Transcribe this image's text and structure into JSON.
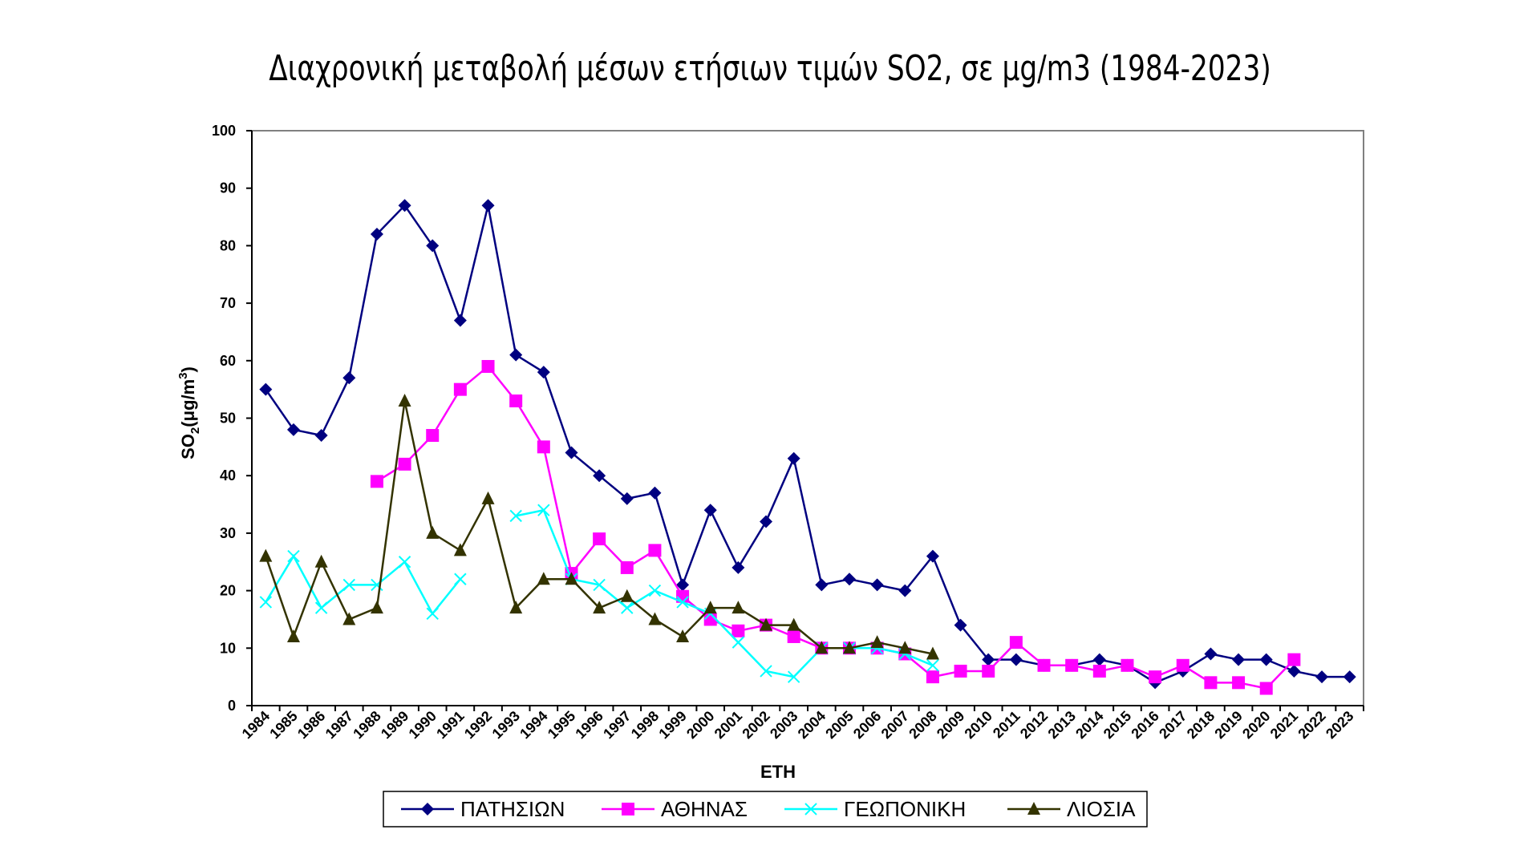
{
  "chart_data": {
    "type": "line",
    "title": "Διαχρονική μεταβολή μέσων ετήσιων τιμών SO2, σε μg/m3 (1984-2023)",
    "xlabel": "ΕΤΗ",
    "ylabel": "SO",
    "ylabel_sub": "2",
    "ylabel_rest": "(μg/m",
    "ylabel_sup": "3",
    "ylabel_end": ")",
    "ylim": [
      0,
      100
    ],
    "yticks": [
      0,
      10,
      20,
      30,
      40,
      50,
      60,
      70,
      80,
      90,
      100
    ],
    "categories": [
      "1984",
      "1985",
      "1986",
      "1987",
      "1988",
      "1989",
      "1990",
      "1991",
      "1992",
      "1993",
      "1994",
      "1995",
      "1996",
      "1997",
      "1998",
      "1999",
      "2000",
      "2001",
      "2002",
      "2003",
      "2004",
      "2005",
      "2006",
      "2007",
      "2008",
      "2009",
      "2010",
      "2011",
      "2012",
      "2013",
      "2014",
      "2015",
      "2016",
      "2017",
      "2018",
      "2019",
      "2020",
      "2021",
      "2022",
      "2023"
    ],
    "legend_position": "bottom",
    "series": [
      {
        "name": "ΠΑΤΗΣΙΩΝ",
        "color": "#000080",
        "marker": "diamond",
        "values": [
          55,
          48,
          47,
          57,
          82,
          87,
          80,
          67,
          87,
          61,
          58,
          44,
          40,
          36,
          37,
          21,
          34,
          24,
          32,
          43,
          21,
          22,
          21,
          20,
          26,
          14,
          8,
          8,
          7,
          7,
          8,
          7,
          4,
          6,
          9,
          8,
          8,
          6,
          5,
          5
        ]
      },
      {
        "name": "ΑΘΗΝΑΣ",
        "color": "#ff00ff",
        "marker": "square",
        "values": [
          null,
          null,
          null,
          null,
          39,
          42,
          47,
          55,
          59,
          53,
          45,
          23,
          29,
          24,
          27,
          19,
          15,
          13,
          14,
          12,
          10,
          10,
          10,
          9,
          5,
          6,
          6,
          11,
          7,
          7,
          6,
          7,
          5,
          7,
          4,
          4,
          3,
          8,
          null,
          null
        ]
      },
      {
        "name": "ΓΕΩΠΟΝΙΚΗ",
        "color": "#00ffff",
        "marker": "x",
        "values": [
          18,
          26,
          17,
          21,
          21,
          25,
          16,
          22,
          null,
          33,
          34,
          22,
          21,
          17,
          20,
          18,
          16,
          11,
          6,
          5,
          10,
          10,
          10,
          9,
          7,
          null,
          null,
          null,
          null,
          null,
          null,
          null,
          null,
          null,
          null,
          null,
          null,
          null,
          null,
          null
        ]
      },
      {
        "name": "ΛΙΟΣΙΑ",
        "color": "#333300",
        "marker": "triangle",
        "values": [
          26,
          12,
          25,
          15,
          17,
          53,
          30,
          27,
          36,
          17,
          22,
          22,
          17,
          19,
          15,
          12,
          17,
          17,
          14,
          14,
          10,
          10,
          11,
          10,
          9,
          null,
          null,
          null,
          null,
          null,
          null,
          null,
          null,
          null,
          null,
          null,
          null,
          null,
          null,
          null
        ]
      }
    ]
  }
}
